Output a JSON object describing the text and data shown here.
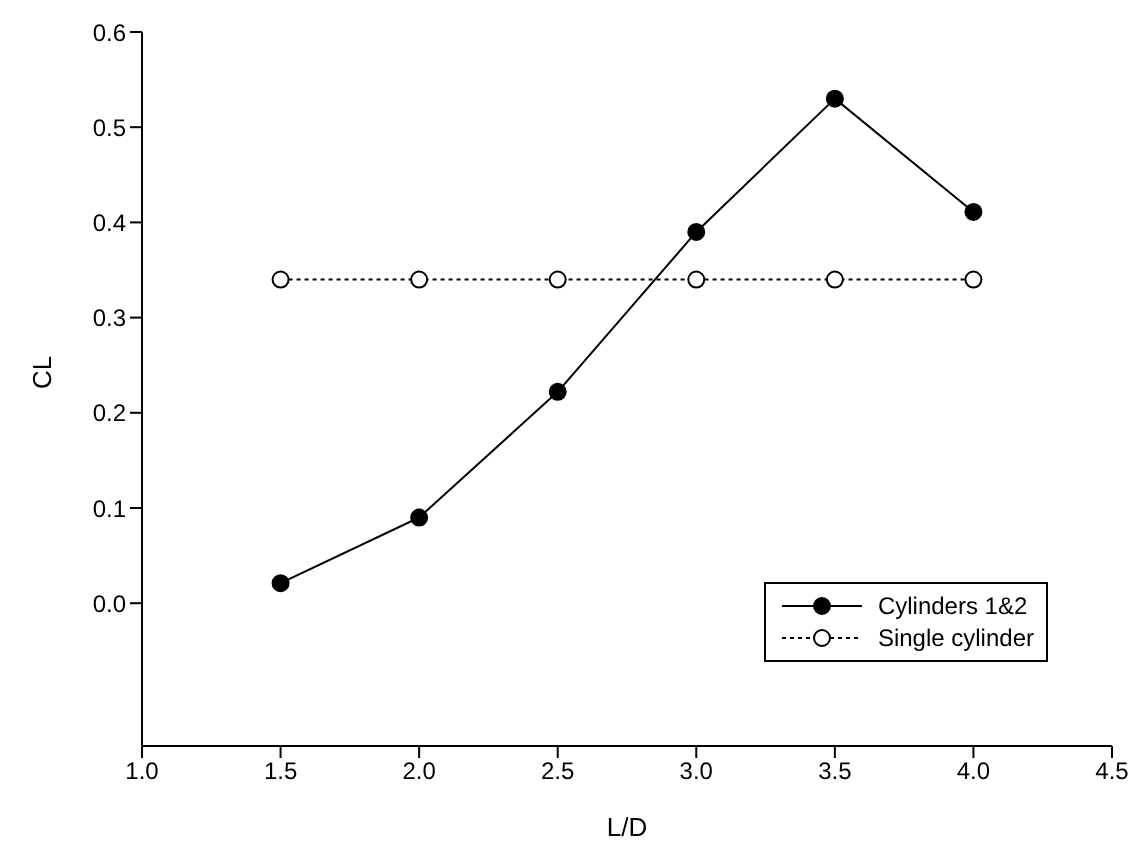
{
  "chart_data": {
    "type": "line",
    "xlabel": "L/D",
    "ylabel": "CL",
    "x": [
      1.5,
      2.0,
      2.5,
      3.0,
      3.5,
      4.0
    ],
    "series": [
      {
        "name": "Cylinders 1&2",
        "color": "#000000",
        "values": [
          0.021,
          0.09,
          0.222,
          0.39,
          0.53,
          0.411
        ],
        "marker": "circle",
        "line_style": "solid"
      },
      {
        "name": "Single cylinder",
        "color": "#000000",
        "values": [
          0.34,
          0.34,
          0.34,
          0.34,
          0.34,
          0.34
        ],
        "marker": "open circle",
        "line_style": "dotted"
      }
    ],
    "xlim": [
      1.0,
      4.5
    ],
    "xticks": [
      {
        "value": 1.0,
        "label": "1.0"
      },
      {
        "value": 1.5,
        "label": "1.5"
      },
      {
        "value": 2.0,
        "label": "2.0"
      },
      {
        "value": 2.5,
        "label": "2.5"
      },
      {
        "value": 3.0,
        "label": "3.0"
      },
      {
        "value": 3.5,
        "label": "3.5"
      },
      {
        "value": 4.0,
        "label": "4.0"
      },
      {
        "value": 4.5,
        "label": "4.5"
      }
    ],
    "ylim": [
      -0.15,
      0.6
    ],
    "yticks": [
      {
        "value": 0.0,
        "label": "0.0"
      },
      {
        "value": 0.1,
        "label": "0.1"
      },
      {
        "value": 0.2,
        "label": "0.2"
      },
      {
        "value": 0.3,
        "label": "0.3"
      },
      {
        "value": 0.4,
        "label": "0.4"
      },
      {
        "value": 0.5,
        "label": "0.5"
      },
      {
        "value": 0.6,
        "label": "0.6"
      }
    ],
    "grid": false,
    "legend": "bottom right"
  }
}
